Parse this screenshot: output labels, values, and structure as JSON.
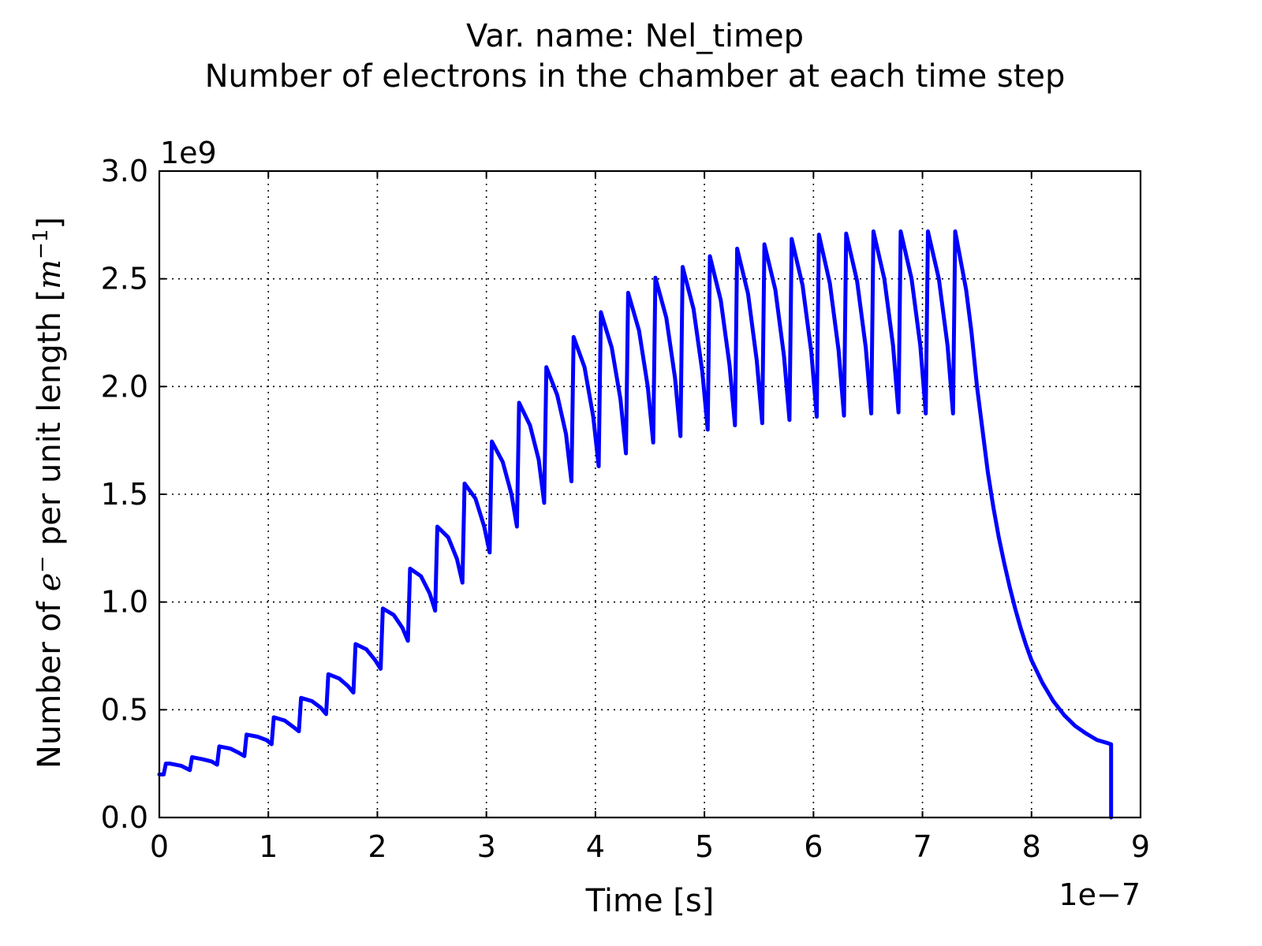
{
  "chart_data": {
    "type": "line",
    "title_line1": "Var. name: Nel_timep",
    "title_line2": "Number of electrons in the chamber at each time step",
    "xlabel": "Time [s]",
    "ylabel_part1": "Number of ",
    "ylabel_e": "e",
    "ylabel_part2": " per unit length [",
    "ylabel_m": "m",
    "ylabel_sup": "−1",
    "ylabel_end": "]",
    "x_offset_text": "1e−7",
    "y_offset_text": "1e9",
    "xlim": [
      0,
      9
    ],
    "ylim": [
      0,
      3.0
    ],
    "x_ticks": [
      0,
      1,
      2,
      3,
      4,
      5,
      6,
      7,
      8,
      9
    ],
    "x_tick_labels": [
      "0",
      "1",
      "2",
      "3",
      "4",
      "5",
      "6",
      "7",
      "8",
      "9"
    ],
    "y_ticks": [
      0,
      0.5,
      1.0,
      1.5,
      2.0,
      2.5,
      3.0
    ],
    "y_tick_labels": [
      "0.0",
      "0.5",
      "1.0",
      "1.5",
      "2.0",
      "2.5",
      "3.0"
    ],
    "grid": true,
    "x_units": "1e-7 s",
    "y_units": "1e9 m^-1",
    "series": [
      {
        "name": "Nel_timep",
        "color": "#0000ff",
        "points": [
          [
            0.0,
            0.2
          ],
          [
            0.04,
            0.2
          ],
          [
            0.06,
            0.25
          ],
          [
            0.1,
            0.25
          ],
          [
            0.2,
            0.24
          ],
          [
            0.28,
            0.22
          ],
          [
            0.3,
            0.28
          ],
          [
            0.4,
            0.27
          ],
          [
            0.48,
            0.26
          ],
          [
            0.53,
            0.245
          ],
          [
            0.55,
            0.33
          ],
          [
            0.65,
            0.32
          ],
          [
            0.73,
            0.3
          ],
          [
            0.78,
            0.285
          ],
          [
            0.8,
            0.385
          ],
          [
            0.9,
            0.375
          ],
          [
            0.98,
            0.36
          ],
          [
            1.03,
            0.34
          ],
          [
            1.05,
            0.465
          ],
          [
            1.15,
            0.45
          ],
          [
            1.23,
            0.42
          ],
          [
            1.28,
            0.4
          ],
          [
            1.3,
            0.555
          ],
          [
            1.4,
            0.54
          ],
          [
            1.48,
            0.51
          ],
          [
            1.53,
            0.48
          ],
          [
            1.55,
            0.665
          ],
          [
            1.65,
            0.645
          ],
          [
            1.73,
            0.61
          ],
          [
            1.78,
            0.58
          ],
          [
            1.8,
            0.805
          ],
          [
            1.9,
            0.78
          ],
          [
            1.98,
            0.73
          ],
          [
            2.03,
            0.69
          ],
          [
            2.05,
            0.97
          ],
          [
            2.15,
            0.94
          ],
          [
            2.23,
            0.88
          ],
          [
            2.28,
            0.82
          ],
          [
            2.3,
            1.155
          ],
          [
            2.4,
            1.12
          ],
          [
            2.48,
            1.04
          ],
          [
            2.53,
            0.96
          ],
          [
            2.55,
            1.35
          ],
          [
            2.65,
            1.3
          ],
          [
            2.73,
            1.2
          ],
          [
            2.78,
            1.09
          ],
          [
            2.8,
            1.55
          ],
          [
            2.9,
            1.48
          ],
          [
            2.98,
            1.35
          ],
          [
            3.03,
            1.23
          ],
          [
            3.05,
            1.745
          ],
          [
            3.15,
            1.65
          ],
          [
            3.23,
            1.5
          ],
          [
            3.28,
            1.35
          ],
          [
            3.3,
            1.925
          ],
          [
            3.4,
            1.82
          ],
          [
            3.48,
            1.66
          ],
          [
            3.53,
            1.46
          ],
          [
            3.55,
            2.09
          ],
          [
            3.65,
            1.96
          ],
          [
            3.73,
            1.78
          ],
          [
            3.78,
            1.56
          ],
          [
            3.8,
            2.23
          ],
          [
            3.9,
            2.09
          ],
          [
            3.98,
            1.86
          ],
          [
            4.03,
            1.63
          ],
          [
            4.05,
            2.345
          ],
          [
            4.15,
            2.18
          ],
          [
            4.23,
            1.94
          ],
          [
            4.28,
            1.69
          ],
          [
            4.3,
            2.435
          ],
          [
            4.4,
            2.26
          ],
          [
            4.48,
            2.0
          ],
          [
            4.53,
            1.74
          ],
          [
            4.55,
            2.505
          ],
          [
            4.65,
            2.32
          ],
          [
            4.73,
            2.04
          ],
          [
            4.78,
            1.77
          ],
          [
            4.8,
            2.555
          ],
          [
            4.9,
            2.36
          ],
          [
            4.98,
            2.07
          ],
          [
            5.03,
            1.8
          ],
          [
            5.05,
            2.605
          ],
          [
            5.15,
            2.4
          ],
          [
            5.23,
            2.1
          ],
          [
            5.28,
            1.82
          ],
          [
            5.3,
            2.64
          ],
          [
            5.4,
            2.43
          ],
          [
            5.48,
            2.12
          ],
          [
            5.53,
            1.83
          ],
          [
            5.55,
            2.66
          ],
          [
            5.65,
            2.45
          ],
          [
            5.73,
            2.14
          ],
          [
            5.78,
            1.845
          ],
          [
            5.8,
            2.685
          ],
          [
            5.9,
            2.47
          ],
          [
            5.98,
            2.16
          ],
          [
            6.03,
            1.86
          ],
          [
            6.05,
            2.705
          ],
          [
            6.15,
            2.48
          ],
          [
            6.23,
            2.17
          ],
          [
            6.28,
            1.865
          ],
          [
            6.3,
            2.71
          ],
          [
            6.4,
            2.49
          ],
          [
            6.48,
            2.18
          ],
          [
            6.53,
            1.875
          ],
          [
            6.55,
            2.72
          ],
          [
            6.65,
            2.5
          ],
          [
            6.73,
            2.19
          ],
          [
            6.78,
            1.88
          ],
          [
            6.8,
            2.72
          ],
          [
            6.9,
            2.5
          ],
          [
            6.98,
            2.19
          ],
          [
            7.03,
            1.875
          ],
          [
            7.05,
            2.72
          ],
          [
            7.15,
            2.5
          ],
          [
            7.23,
            2.19
          ],
          [
            7.28,
            1.875
          ],
          [
            7.3,
            2.72
          ],
          [
            7.4,
            2.45
          ],
          [
            7.45,
            2.25
          ],
          [
            7.5,
            2.0
          ],
          [
            7.55,
            1.8
          ],
          [
            7.6,
            1.6
          ],
          [
            7.65,
            1.44
          ],
          [
            7.7,
            1.3
          ],
          [
            7.75,
            1.18
          ],
          [
            7.8,
            1.07
          ],
          [
            7.85,
            0.97
          ],
          [
            7.9,
            0.88
          ],
          [
            7.95,
            0.8
          ],
          [
            8.0,
            0.73
          ],
          [
            8.1,
            0.625
          ],
          [
            8.2,
            0.54
          ],
          [
            8.3,
            0.475
          ],
          [
            8.4,
            0.425
          ],
          [
            8.5,
            0.39
          ],
          [
            8.6,
            0.36
          ],
          [
            8.7,
            0.345
          ],
          [
            8.73,
            0.34
          ],
          [
            8.73,
            0.0
          ]
        ]
      }
    ]
  }
}
